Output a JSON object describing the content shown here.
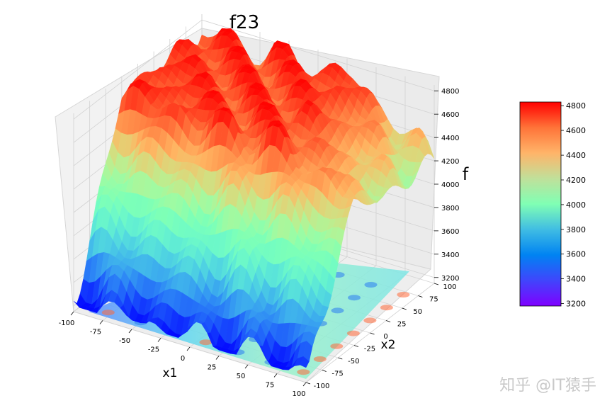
{
  "chart_data": {
    "type": "surface3d",
    "title": "f23",
    "xlabel": "x1",
    "ylabel": "x2",
    "zlabel": "f",
    "x_ticks": [
      -100,
      -75,
      -50,
      -25,
      0,
      25,
      50,
      75,
      100
    ],
    "y_ticks": [
      -100,
      -75,
      -50,
      -25,
      0,
      25,
      50,
      75,
      100
    ],
    "z_ticks": [
      3200,
      3400,
      3600,
      3800,
      4000,
      4200,
      4400,
      4600,
      4800
    ],
    "xlim": [
      -100,
      100
    ],
    "ylim": [
      -100,
      100
    ],
    "zlim": [
      3150,
      4850
    ],
    "colormap": "rainbow",
    "colorbar_ticks": [
      3200,
      3400,
      3600,
      3800,
      4000,
      4200,
      4400,
      4600,
      4800
    ],
    "colorbar_range": [
      3180,
      4830
    ],
    "contour_projection": "bottom (z offset)",
    "grid": true,
    "pane_color": "#f2f2f2"
  },
  "watermark": {
    "text": "知乎 @IT猿手"
  }
}
